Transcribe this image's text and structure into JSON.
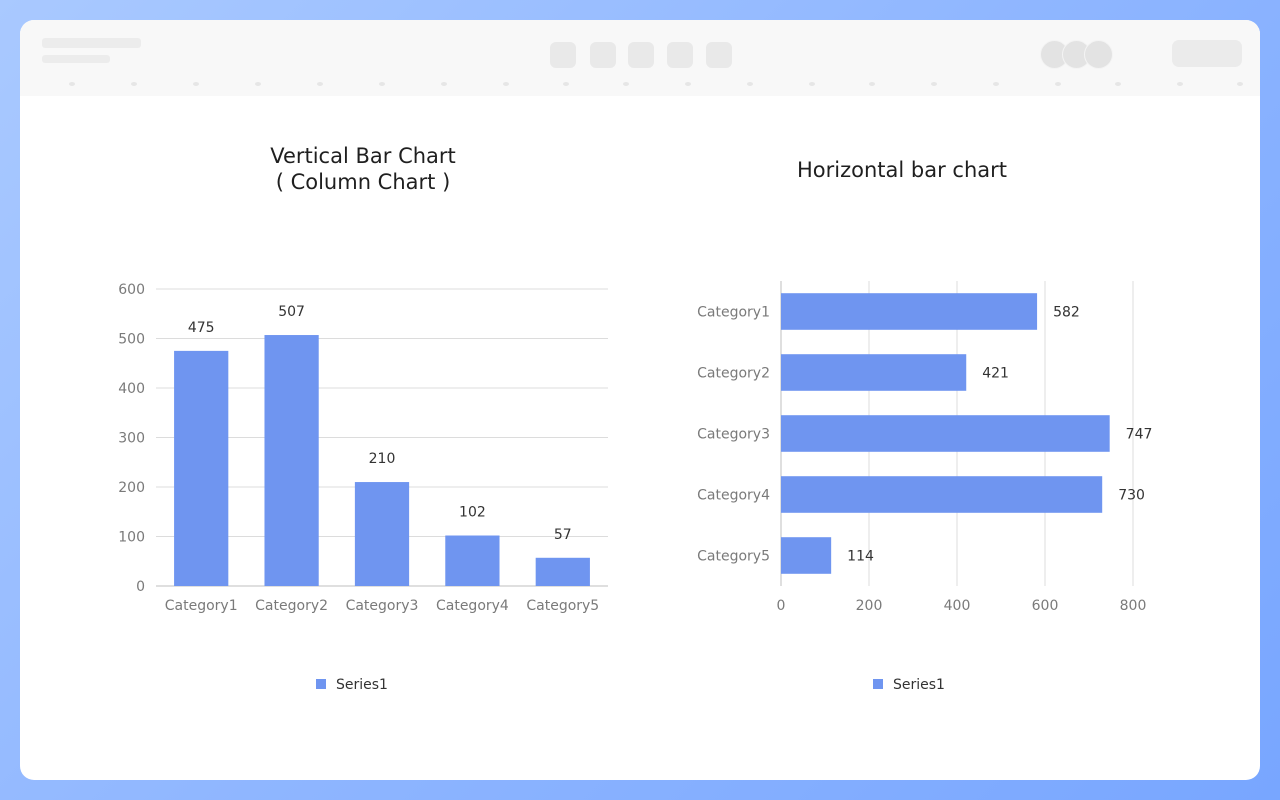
{
  "theme": {
    "bar_color": "#6f95f0",
    "grid_color": "#dcdcdc",
    "axis_color": "#bfbfbf"
  },
  "toolbar": {
    "icons": [
      "toolbar-button",
      "toolbar-button",
      "toolbar-button",
      "toolbar-button",
      "toolbar-button"
    ]
  },
  "chart_data": [
    {
      "type": "bar",
      "orientation": "vertical",
      "title_line1": "Vertical Bar Chart",
      "title_line2": "( Column Chart )",
      "categories": [
        "Category1",
        "Category2",
        "Category3",
        "Category4",
        "Category5"
      ],
      "series": [
        {
          "name": "Series1",
          "values": [
            475,
            507,
            210,
            102,
            57
          ]
        }
      ],
      "ylim": [
        0,
        600
      ],
      "yticks": [
        "0",
        "100",
        "200",
        "300",
        "400",
        "500",
        "600"
      ],
      "grid": true,
      "legend": "bottom"
    },
    {
      "type": "bar",
      "orientation": "horizontal",
      "title": "Horizontal bar chart",
      "categories": [
        "Category1",
        "Category2",
        "Category3",
        "Category4",
        "Category5"
      ],
      "series": [
        {
          "name": "Series1",
          "values": [
            582,
            421,
            747,
            730,
            114
          ]
        }
      ],
      "xlim": [
        0,
        800
      ],
      "xticks": [
        "0",
        "200",
        "400",
        "600",
        "800"
      ],
      "grid": true,
      "legend": "bottom"
    }
  ]
}
